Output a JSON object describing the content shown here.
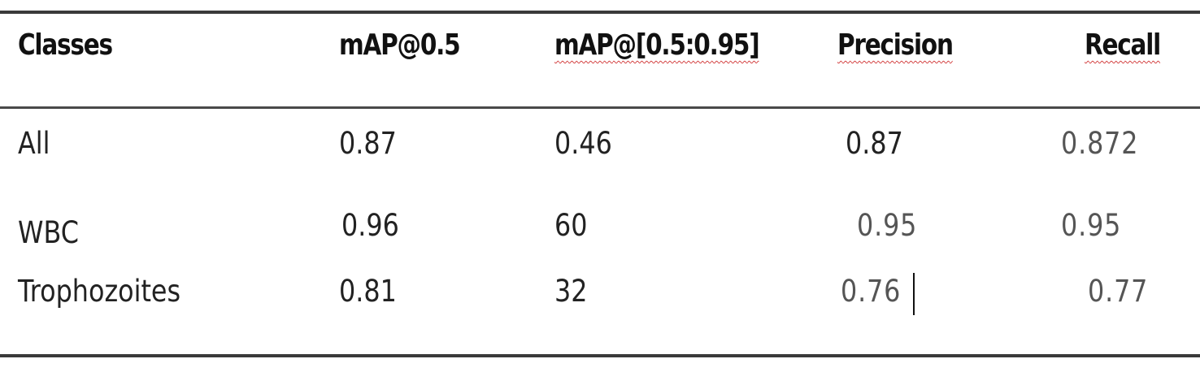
{
  "table": {
    "headers": [
      "Classes",
      "mAP@0.5",
      "mAP@[0.5:0.95]",
      "Precision",
      "Recall"
    ],
    "rows": [
      [
        "All",
        "0.87",
        "0.46",
        "0.87",
        "0.872"
      ],
      [
        "WBC",
        "0.96",
        "60",
        "0.95",
        "0.95"
      ],
      [
        "Trophozoites",
        "0.81",
        "32",
        "0.76",
        "0.77"
      ]
    ]
  },
  "colors": {
    "rule": "#3a3a3a",
    "text": "#222222",
    "dim_text": "#555555",
    "spellcheck_underline": "#d23a3a"
  }
}
